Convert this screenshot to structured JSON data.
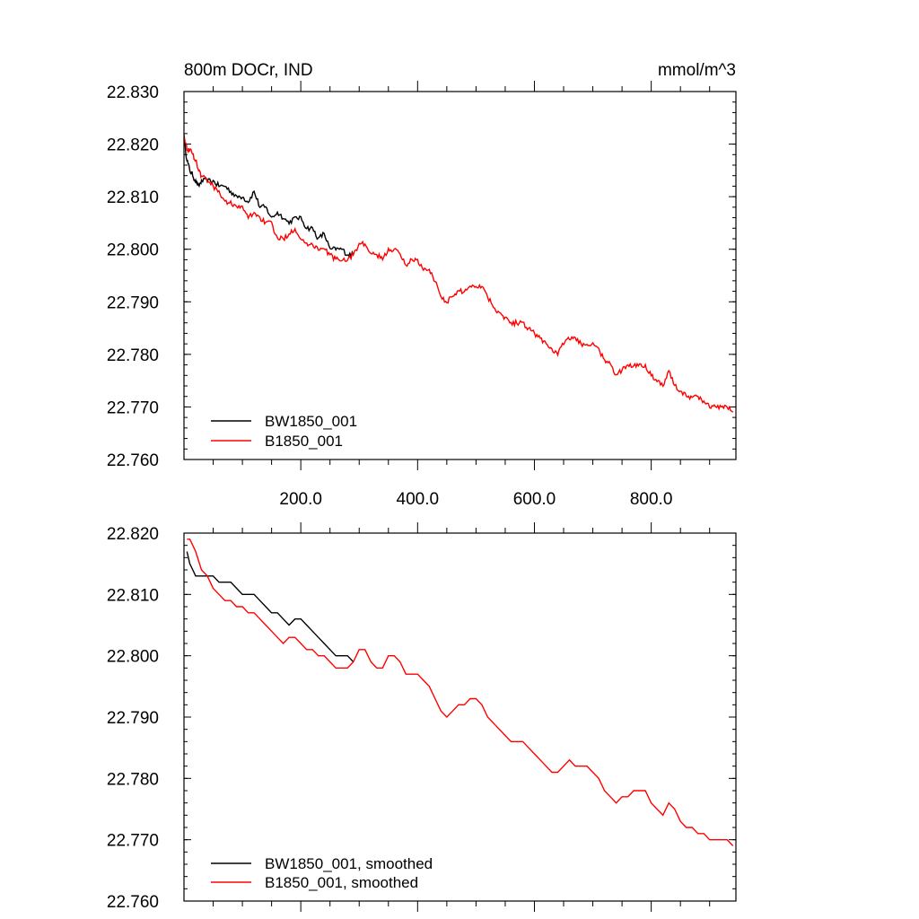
{
  "chart_data": [
    {
      "type": "line",
      "title_left": "800m DOCr, IND",
      "title_right": "mmol/m^3",
      "xlim": [
        0,
        945
      ],
      "ylim": [
        22.76,
        22.83
      ],
      "xticks": [
        {
          "value": 200,
          "label": "200.0"
        },
        {
          "value": 400,
          "label": "400.0"
        },
        {
          "value": 600,
          "label": "600.0"
        },
        {
          "value": 800,
          "label": "800.0"
        }
      ],
      "xminor": [
        50,
        100,
        150,
        250,
        300,
        350,
        450,
        500,
        550,
        650,
        700,
        750,
        850,
        900
      ],
      "yticks": [
        {
          "value": 22.83,
          "label": "22.830"
        },
        {
          "value": 22.82,
          "label": "22.820"
        },
        {
          "value": 22.81,
          "label": "22.810"
        },
        {
          "value": 22.8,
          "label": "22.800"
        },
        {
          "value": 22.79,
          "label": "22.790"
        },
        {
          "value": 22.78,
          "label": "22.780"
        },
        {
          "value": 22.77,
          "label": "22.770"
        },
        {
          "value": 22.76,
          "label": "22.760"
        }
      ],
      "legend": [
        {
          "label": "BW1850_001",
          "color": "#000000"
        },
        {
          "label": "B1850_001",
          "color": "#ff0000"
        }
      ],
      "series": [
        {
          "name": "BW1850_001",
          "color": "#000000",
          "x": [
            0,
            5,
            10,
            15,
            20,
            25,
            30,
            40,
            50,
            60,
            70,
            80,
            90,
            100,
            110,
            120,
            130,
            140,
            150,
            160,
            170,
            180,
            190,
            200,
            210,
            220,
            230,
            240,
            250,
            260,
            270,
            280,
            290
          ],
          "y": [
            22.821,
            22.817,
            22.815,
            22.814,
            22.813,
            22.812,
            22.813,
            22.813,
            22.813,
            22.812,
            22.812,
            22.811,
            22.81,
            22.81,
            22.809,
            22.811,
            22.808,
            22.808,
            22.806,
            22.807,
            22.806,
            22.805,
            22.806,
            22.806,
            22.804,
            22.804,
            22.802,
            22.803,
            22.8,
            22.8,
            22.8,
            22.799,
            22.799
          ]
        },
        {
          "name": "B1850_001",
          "color": "#ff0000",
          "x": [
            0,
            5,
            10,
            15,
            20,
            25,
            30,
            40,
            50,
            60,
            70,
            80,
            90,
            100,
            110,
            120,
            130,
            140,
            150,
            160,
            170,
            180,
            190,
            200,
            210,
            220,
            230,
            240,
            250,
            260,
            270,
            280,
            290,
            300,
            310,
            320,
            330,
            340,
            350,
            360,
            370,
            380,
            390,
            400,
            410,
            420,
            430,
            440,
            450,
            460,
            470,
            480,
            490,
            500,
            510,
            520,
            530,
            540,
            550,
            560,
            570,
            580,
            590,
            600,
            610,
            620,
            630,
            640,
            650,
            660,
            670,
            680,
            690,
            700,
            710,
            720,
            730,
            740,
            750,
            760,
            770,
            780,
            790,
            800,
            810,
            820,
            830,
            840,
            850,
            860,
            870,
            880,
            890,
            900,
            910,
            920,
            930,
            940
          ],
          "y": [
            22.822,
            22.819,
            22.819,
            22.818,
            22.817,
            22.815,
            22.814,
            22.813,
            22.812,
            22.811,
            22.809,
            22.809,
            22.808,
            22.808,
            22.806,
            22.807,
            22.806,
            22.805,
            22.805,
            22.802,
            22.802,
            22.803,
            22.804,
            22.802,
            22.801,
            22.801,
            22.8,
            22.8,
            22.799,
            22.798,
            22.798,
            22.798,
            22.799,
            22.801,
            22.801,
            22.799,
            22.799,
            22.798,
            22.8,
            22.8,
            22.799,
            22.797,
            22.798,
            22.798,
            22.796,
            22.796,
            22.794,
            22.791,
            22.79,
            22.791,
            22.792,
            22.792,
            22.793,
            22.793,
            22.793,
            22.791,
            22.789,
            22.788,
            22.787,
            22.786,
            22.786,
            22.786,
            22.785,
            22.784,
            22.783,
            22.782,
            22.781,
            22.78,
            22.782,
            22.783,
            22.783,
            22.782,
            22.782,
            22.782,
            22.781,
            22.779,
            22.778,
            22.776,
            22.777,
            22.778,
            22.778,
            22.778,
            22.778,
            22.776,
            22.775,
            22.774,
            22.777,
            22.774,
            22.773,
            22.772,
            22.772,
            22.772,
            22.771,
            22.77,
            22.77,
            22.77,
            22.77,
            22.769
          ]
        }
      ]
    },
    {
      "type": "line",
      "xlim": [
        0,
        945
      ],
      "ylim": [
        22.76,
        22.82
      ],
      "xticks": [
        {
          "value": 200,
          "label": ""
        },
        {
          "value": 400,
          "label": ""
        },
        {
          "value": 600,
          "label": ""
        },
        {
          "value": 800,
          "label": ""
        }
      ],
      "xminor": [
        50,
        100,
        150,
        250,
        300,
        350,
        450,
        500,
        550,
        650,
        700,
        750,
        850,
        900
      ],
      "yticks": [
        {
          "value": 22.82,
          "label": "22.820"
        },
        {
          "value": 22.81,
          "label": "22.810"
        },
        {
          "value": 22.8,
          "label": "22.800"
        },
        {
          "value": 22.79,
          "label": "22.790"
        },
        {
          "value": 22.78,
          "label": "22.780"
        },
        {
          "value": 22.77,
          "label": "22.770"
        },
        {
          "value": 22.76,
          "label": "22.760"
        }
      ],
      "legend": [
        {
          "label": "BW1850_001, smoothed",
          "color": "#000000"
        },
        {
          "label": "B1850_001, smoothed",
          "color": "#ff0000"
        }
      ],
      "series": [
        {
          "name": "BW1850_001, smoothed",
          "color": "#000000",
          "x": [
            5,
            10,
            15,
            20,
            30,
            40,
            50,
            60,
            70,
            80,
            90,
            100,
            110,
            120,
            130,
            140,
            150,
            160,
            170,
            180,
            190,
            200,
            210,
            220,
            230,
            240,
            250,
            260,
            270,
            280,
            290
          ],
          "y": [
            22.817,
            22.815,
            22.814,
            22.813,
            22.813,
            22.813,
            22.813,
            22.812,
            22.812,
            22.812,
            22.811,
            22.81,
            22.81,
            22.81,
            22.809,
            22.808,
            22.807,
            22.807,
            22.806,
            22.805,
            22.806,
            22.806,
            22.805,
            22.804,
            22.803,
            22.802,
            22.801,
            22.8,
            22.8,
            22.8,
            22.799
          ]
        },
        {
          "name": "B1850_001, smoothed",
          "color": "#ff0000",
          "x": [
            5,
            10,
            15,
            20,
            30,
            40,
            50,
            60,
            70,
            80,
            90,
            100,
            110,
            120,
            130,
            140,
            150,
            160,
            170,
            180,
            190,
            200,
            210,
            220,
            230,
            240,
            250,
            260,
            270,
            280,
            290,
            300,
            310,
            320,
            330,
            340,
            350,
            360,
            370,
            380,
            390,
            400,
            410,
            420,
            430,
            440,
            450,
            460,
            470,
            480,
            490,
            500,
            510,
            520,
            530,
            540,
            550,
            560,
            570,
            580,
            590,
            600,
            610,
            620,
            630,
            640,
            650,
            660,
            670,
            680,
            690,
            700,
            710,
            720,
            730,
            740,
            750,
            760,
            770,
            780,
            790,
            800,
            810,
            820,
            830,
            840,
            850,
            860,
            870,
            880,
            890,
            900,
            910,
            920,
            930,
            940
          ],
          "y": [
            22.819,
            22.819,
            22.818,
            22.817,
            22.814,
            22.813,
            22.811,
            22.81,
            22.809,
            22.809,
            22.808,
            22.808,
            22.807,
            22.807,
            22.806,
            22.805,
            22.804,
            22.803,
            22.802,
            22.803,
            22.803,
            22.802,
            22.801,
            22.801,
            22.8,
            22.8,
            22.799,
            22.798,
            22.798,
            22.798,
            22.799,
            22.801,
            22.801,
            22.799,
            22.798,
            22.798,
            22.8,
            22.8,
            22.799,
            22.797,
            22.797,
            22.797,
            22.796,
            22.795,
            22.793,
            22.791,
            22.79,
            22.791,
            22.792,
            22.792,
            22.793,
            22.793,
            22.792,
            22.79,
            22.789,
            22.788,
            22.787,
            22.786,
            22.786,
            22.786,
            22.785,
            22.784,
            22.783,
            22.782,
            22.781,
            22.781,
            22.782,
            22.783,
            22.782,
            22.782,
            22.782,
            22.781,
            22.78,
            22.778,
            22.777,
            22.776,
            22.777,
            22.777,
            22.778,
            22.778,
            22.778,
            22.776,
            22.775,
            22.774,
            22.776,
            22.775,
            22.773,
            22.772,
            22.772,
            22.771,
            22.771,
            22.77,
            22.77,
            22.77,
            22.77,
            22.769
          ]
        }
      ]
    }
  ]
}
